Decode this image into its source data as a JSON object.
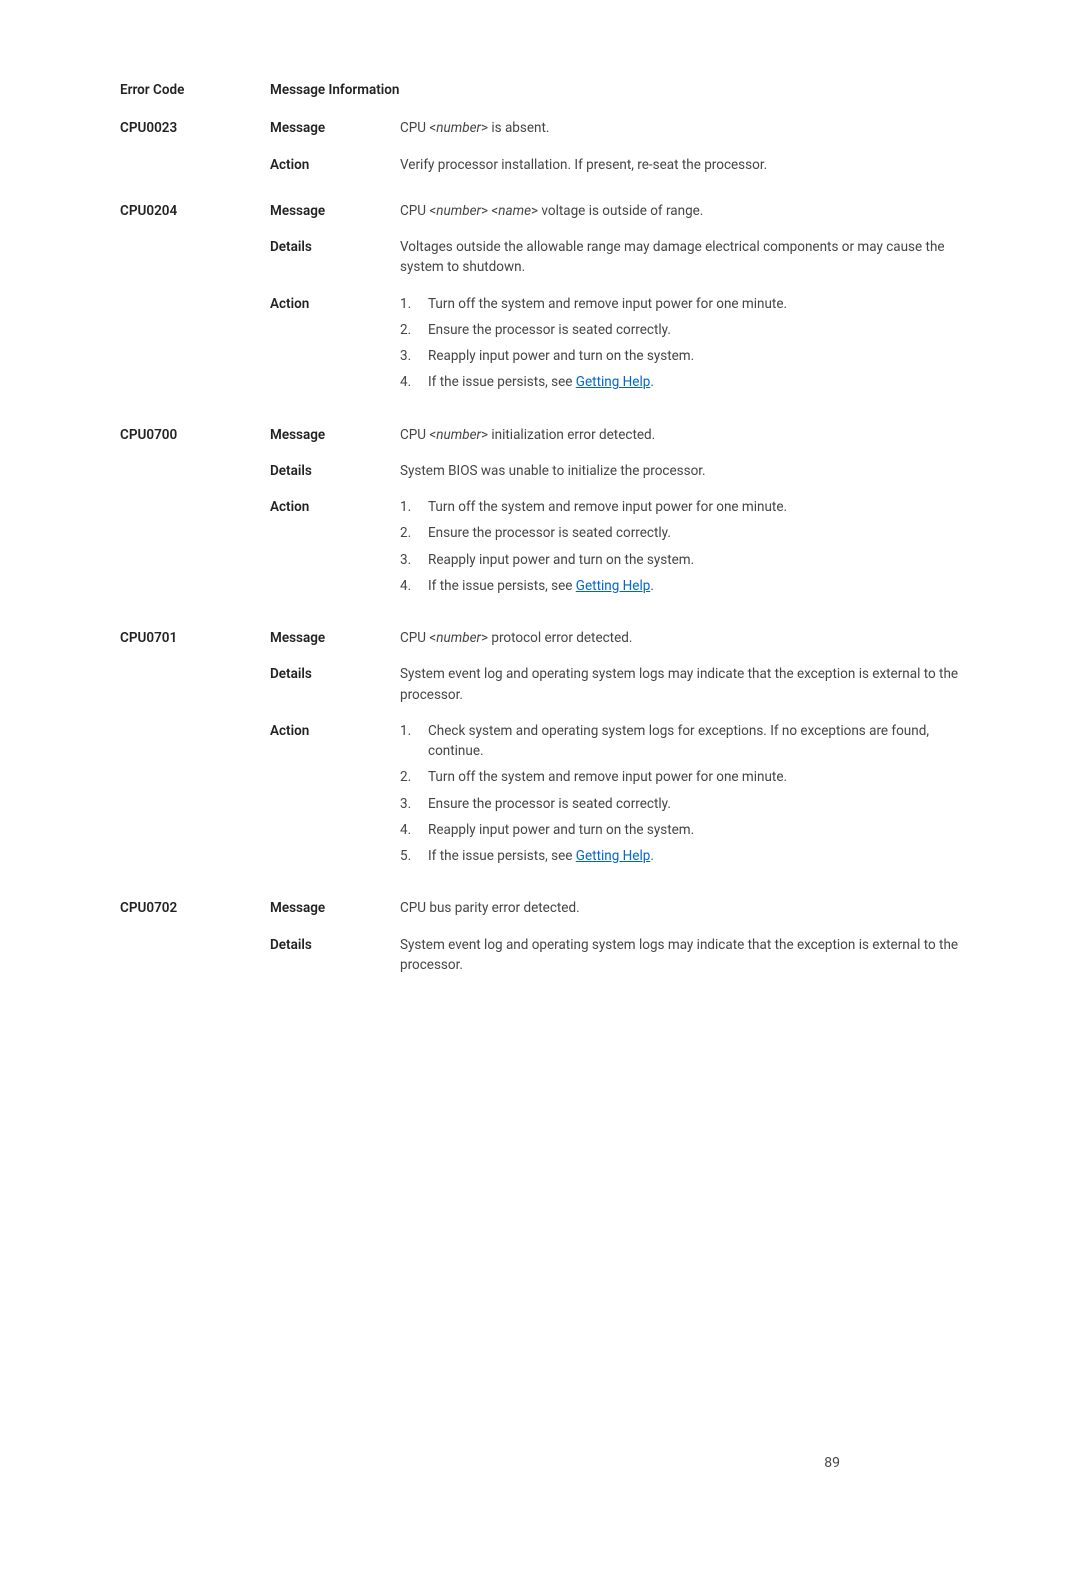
{
  "header": {
    "errorCode": "Error Code",
    "messageInfo": "Message Information"
  },
  "labels": {
    "message": "Message",
    "details": "Details",
    "action": "Action"
  },
  "helpLinkText": "Getting Help",
  "pageNumber": "89",
  "entries": [
    {
      "code": "CPU0023",
      "message": {
        "pre": "CPU <",
        "var": "number",
        "post": "> is absent."
      },
      "action_text": "Verify processor installation.  If present, re-seat the processor."
    },
    {
      "code": "CPU0204",
      "message": {
        "pre": "CPU <",
        "var": "number",
        "mid": "> <",
        "var2": "name",
        "post": "> voltage is outside of range."
      },
      "details": "Voltages outside the allowable range may damage electrical components or may cause the system to shutdown.",
      "action_steps": [
        "Turn off the system and remove input power for one minute.",
        "Ensure the processor is seated correctly.",
        "Reapply input power and turn on the system.",
        "If the issue persists, see "
      ],
      "last_step_has_link": true
    },
    {
      "code": "CPU0700",
      "message": {
        "pre": "CPU <",
        "var": "number",
        "post": "> initialization error detected."
      },
      "details": "System BIOS was unable to initialize the processor.",
      "action_steps": [
        "Turn off the system and remove input power for one minute.",
        "Ensure the processor is seated correctly.",
        "Reapply input power and turn on the system.",
        "If the issue persists, see "
      ],
      "last_step_has_link": true
    },
    {
      "code": "CPU0701",
      "message": {
        "pre": "CPU <",
        "var": "number",
        "post": "> protocol error detected."
      },
      "details": "System event log and operating system logs may indicate that the exception is external to the processor.",
      "action_steps": [
        "Check system and operating system logs for exceptions. If no exceptions are found, continue.",
        "Turn off the system and remove input power for one minute.",
        "Ensure the processor is seated correctly.",
        "Reapply input power and turn on the system.",
        "If the issue persists, see "
      ],
      "last_step_has_link": true
    },
    {
      "code": "CPU0702",
      "message_plain": "CPU bus parity error detected.",
      "details": "System event log and operating system logs may indicate that the exception is external to the processor."
    }
  ]
}
